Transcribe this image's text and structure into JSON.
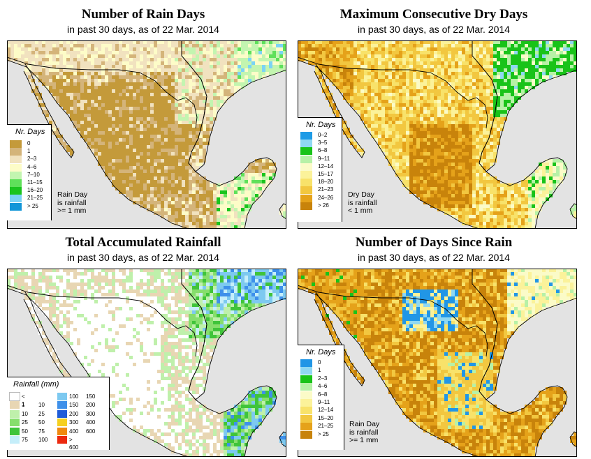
{
  "palette": {
    "ocean": "#e3e3e3",
    "land_base": "#f3e9cd",
    "border": "#000000"
  },
  "panels": [
    {
      "id": "rain-days",
      "title": "Number of Rain Days",
      "subtitle": "in past 30 days, as of  22 Mar. 2014",
      "legend": {
        "title": "Nr. Days",
        "items": [
          {
            "label": "0",
            "color": "#c49a3a"
          },
          {
            "label": "1",
            "color": "#d4b47a"
          },
          {
            "label": "2–3",
            "color": "#f1e2bf"
          },
          {
            "label": "4–6",
            "color": "#fdfcc8"
          },
          {
            "label": "7–10",
            "color": "#c3f5b0"
          },
          {
            "label": "11–15",
            "color": "#5fe05a"
          },
          {
            "label": "16–20",
            "color": "#1ac41e"
          },
          {
            "label": "21–25",
            "color": "#7bd3f5"
          },
          {
            "label": "> 25",
            "color": "#1296d8"
          }
        ],
        "note": [
          "Rain Day",
          "is rainfall",
          ">= 1 mm"
        ]
      }
    },
    {
      "id": "dry-days",
      "title": "Maximum Consecutive Dry Days",
      "subtitle": "in past 30 days, as of  22 Mar. 2014",
      "legend": {
        "title": "Nr. Days",
        "items": [
          {
            "label": "0–2",
            "color": "#1e9be6"
          },
          {
            "label": "3–5",
            "color": "#8fd8f2"
          },
          {
            "label": "6–8",
            "color": "#19c319"
          },
          {
            "label": "9–11",
            "color": "#b7f1a7"
          },
          {
            "label": "12–14",
            "color": "#fbfbc8"
          },
          {
            "label": "15–17",
            "color": "#fbf29a"
          },
          {
            "label": "18–20",
            "color": "#f8e26a"
          },
          {
            "label": "21–23",
            "color": "#f2c740"
          },
          {
            "label": "24–26",
            "color": "#e5a21a"
          },
          {
            "label": "> 26",
            "color": "#c8830b"
          }
        ],
        "note": [
          "Dry Day",
          "is rainfall",
          "< 1 mm"
        ]
      }
    },
    {
      "id": "rainfall",
      "title": "Total Accumulated Rainfall",
      "subtitle": "in past 30 days, as of  22 Mar. 2014",
      "legend": {
        "title": "Rainfall (mm)",
        "left": [
          {
            "a": "< 1",
            "b": "",
            "color": "#ffffff"
          },
          {
            "a": "1",
            "b": "10",
            "color": "#e8d6b3"
          },
          {
            "a": "10",
            "b": "25",
            "color": "#bff0ab"
          },
          {
            "a": "25",
            "b": "50",
            "color": "#86de6c"
          },
          {
            "a": "50",
            "b": "75",
            "color": "#3fc43a"
          },
          {
            "a": "75",
            "b": "100",
            "color": "#c5eefa"
          }
        ],
        "right": [
          {
            "a": "100",
            "b": "150",
            "color": "#7dc9f0"
          },
          {
            "a": "150",
            "b": "200",
            "color": "#3e90ea"
          },
          {
            "a": "200",
            "b": "300",
            "color": "#1f5cd8"
          },
          {
            "a": "300",
            "b": "400",
            "color": "#f5d020"
          },
          {
            "a": "400",
            "b": "600",
            "color": "#f08a10"
          },
          {
            "a": "> 600",
            "b": "",
            "color": "#ec2a10"
          }
        ]
      }
    },
    {
      "id": "days-since",
      "title": "Number of Days Since Rain",
      "subtitle": "in past 30 days, as of  22 Mar. 2014",
      "legend": {
        "title": "Nr. Days",
        "items": [
          {
            "label": "0",
            "color": "#2196e6"
          },
          {
            "label": "1",
            "color": "#8fd8f2"
          },
          {
            "label": "2–3",
            "color": "#19c319"
          },
          {
            "label": "4–6",
            "color": "#b7f1a7"
          },
          {
            "label": "6–8",
            "color": "#fbfbc8"
          },
          {
            "label": "9–11",
            "color": "#fbf29a"
          },
          {
            "label": "12–14",
            "color": "#f8e26a"
          },
          {
            "label": "15–20",
            "color": "#f2c740"
          },
          {
            "label": "21–25",
            "color": "#e5a21a"
          },
          {
            "label": "> 25",
            "color": "#c8830b"
          }
        ],
        "note": [
          "Rain Day",
          "is rainfall",
          ">= 1 mm"
        ]
      }
    }
  ]
}
